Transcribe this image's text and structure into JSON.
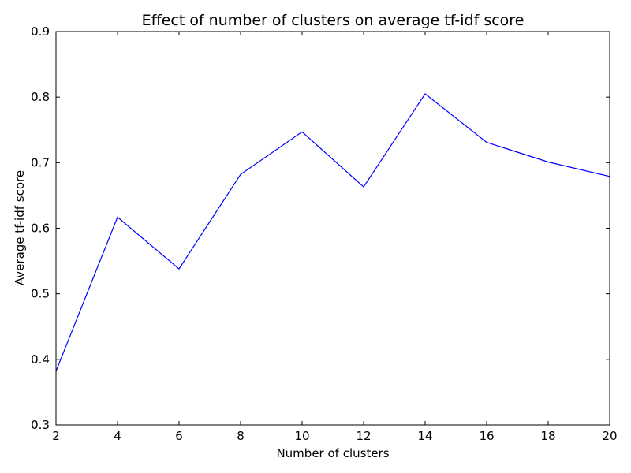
{
  "chart_data": {
    "type": "line",
    "title": "Effect of number of clusters on average tf-idf score",
    "xlabel": "Number of clusters",
    "ylabel": "Average tf-idf score",
    "x": [
      2,
      4,
      6,
      8,
      10,
      12,
      14,
      16,
      18,
      20
    ],
    "xlim": [
      2,
      20
    ],
    "ylim": [
      0.3,
      0.9
    ],
    "xticks": [
      2,
      4,
      6,
      8,
      10,
      12,
      14,
      16,
      18,
      20
    ],
    "yticks": [
      0.3,
      0.4,
      0.5,
      0.6,
      0.7,
      0.8,
      0.9
    ],
    "xtick_labels": [
      "2",
      "4",
      "6",
      "8",
      "10",
      "12",
      "14",
      "16",
      "18",
      "20"
    ],
    "ytick_labels": [
      "0.3",
      "0.4",
      "0.5",
      "0.6",
      "0.7",
      "0.8",
      "0.9"
    ],
    "series": [
      {
        "values": [
          0.382,
          0.617,
          0.538,
          0.682,
          0.747,
          0.663,
          0.805,
          0.731,
          0.701,
          0.679
        ],
        "color": "#0000ff"
      }
    ],
    "grid": false,
    "legend": "none"
  }
}
